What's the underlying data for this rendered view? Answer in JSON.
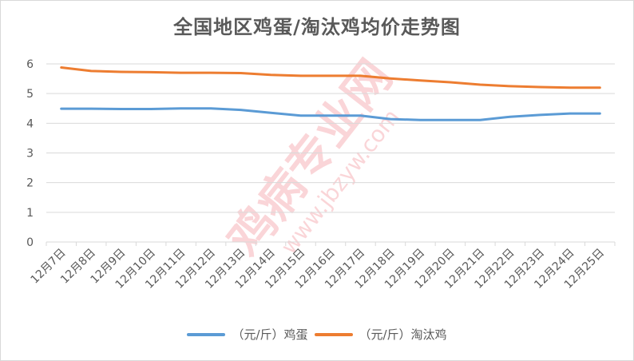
{
  "chart_data": {
    "type": "line",
    "title": "全国地区鸡蛋/淘汰鸡均价走势图",
    "categories": [
      "12月7日",
      "12月8日",
      "12月9日",
      "12月10日",
      "12月11日",
      "12月12日",
      "12月13日",
      "12月14日",
      "12月15日",
      "12月16日",
      "12月17日",
      "12月18日",
      "12月19日",
      "12月20日",
      "12月21日",
      "12月22日",
      "12月23日",
      "12月24日",
      "12月25日"
    ],
    "series": [
      {
        "name": "（元/斤）鸡蛋",
        "color": "#5b9bd5",
        "values": [
          4.49,
          4.49,
          4.48,
          4.48,
          4.5,
          4.5,
          4.45,
          4.35,
          4.26,
          4.26,
          4.26,
          4.14,
          4.11,
          4.11,
          4.11,
          4.22,
          4.28,
          4.33,
          4.33
        ]
      },
      {
        "name": "（元/斤）淘汰鸡",
        "color": "#ed7d31",
        "values": [
          5.88,
          5.76,
          5.73,
          5.72,
          5.7,
          5.7,
          5.69,
          5.63,
          5.6,
          5.6,
          5.6,
          5.51,
          5.44,
          5.38,
          5.3,
          5.25,
          5.22,
          5.2,
          5.2
        ]
      }
    ],
    "ylim": [
      0,
      6
    ],
    "yticks": [
      "0",
      "1",
      "2",
      "3",
      "4",
      "5",
      "6"
    ],
    "grid": true,
    "legend": "bottom"
  },
  "watermark": {
    "text": "鸡病专业网",
    "url": "www.jbzyw.com"
  }
}
